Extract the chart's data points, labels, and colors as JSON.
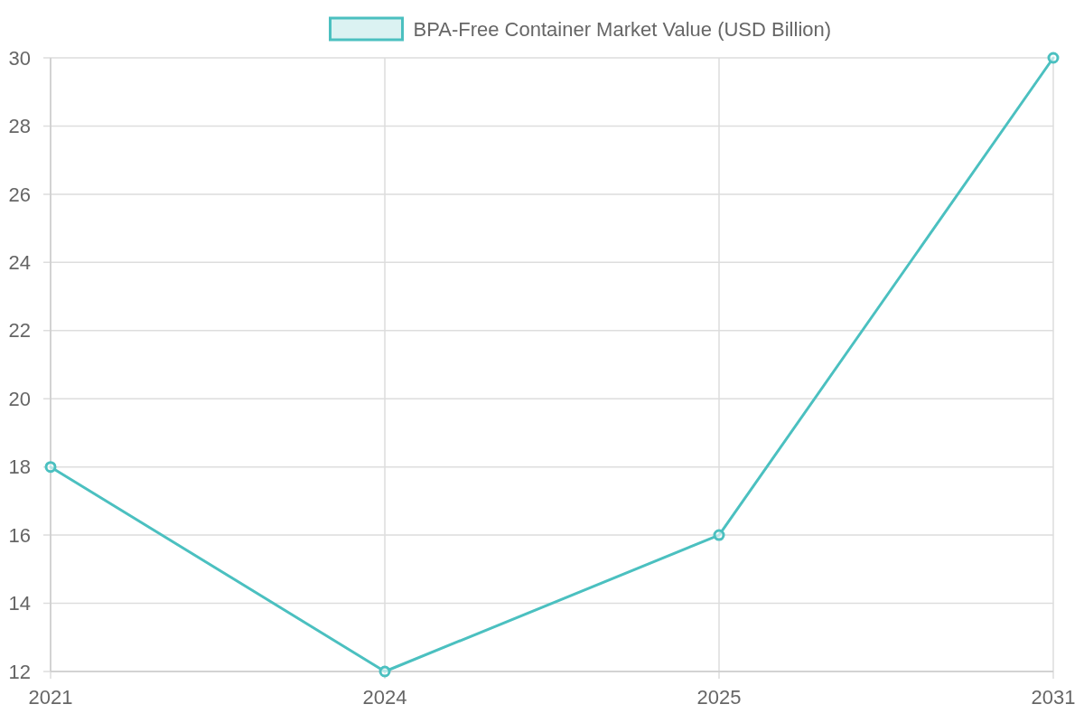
{
  "chart_data": {
    "type": "line",
    "categories": [
      "2021",
      "2024",
      "2025",
      "2031"
    ],
    "series": [
      {
        "name": "BPA-Free Container Market Value (USD Billion)",
        "color": "#4bc0c0",
        "values": [
          18,
          12,
          16,
          30
        ]
      }
    ],
    "ylim": [
      12,
      30
    ],
    "yticks": [
      12,
      14,
      16,
      18,
      20,
      22,
      24,
      26,
      28,
      30
    ],
    "grid": true,
    "legend": "top",
    "marker": "circle",
    "line_style": "solid"
  }
}
